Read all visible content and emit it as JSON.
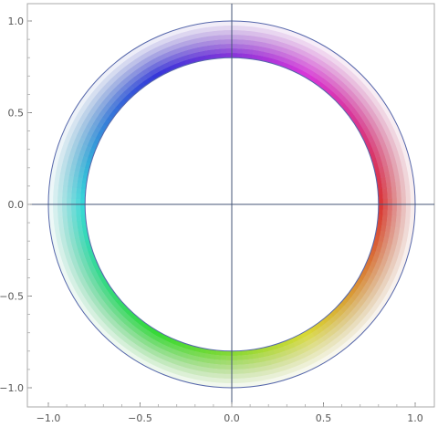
{
  "chart_data": {
    "type": "area",
    "description_visible": "",
    "ring": {
      "inner_radius": 0.8,
      "outer_radius": 1.0,
      "color_mode": "hue by angle, fading to white toward outer radius"
    },
    "xlim": [
      -1.0,
      1.0
    ],
    "ylim": [
      -1.0,
      1.0
    ],
    "x_ticks": [
      {
        "value": -1.0,
        "label": "−1.0"
      },
      {
        "value": -0.5,
        "label": "−0.5"
      },
      {
        "value": 0.0,
        "label": "0.0"
      },
      {
        "value": 0.5,
        "label": "0.5"
      },
      {
        "value": 1.0,
        "label": "1.0"
      }
    ],
    "y_ticks": [
      {
        "value": 1.0,
        "label": "1.0"
      },
      {
        "value": 0.5,
        "label": "0.5"
      },
      {
        "value": 0.0,
        "label": "0.0"
      },
      {
        "value": -0.5,
        "label": "−0.5"
      },
      {
        "value": -1.0,
        "label": "−1.0"
      }
    ],
    "axis_lines": true,
    "frame": true,
    "colors": {
      "axis": "#445577",
      "circle_outline": "#5566aa",
      "frame": "#aaaaaa"
    }
  }
}
